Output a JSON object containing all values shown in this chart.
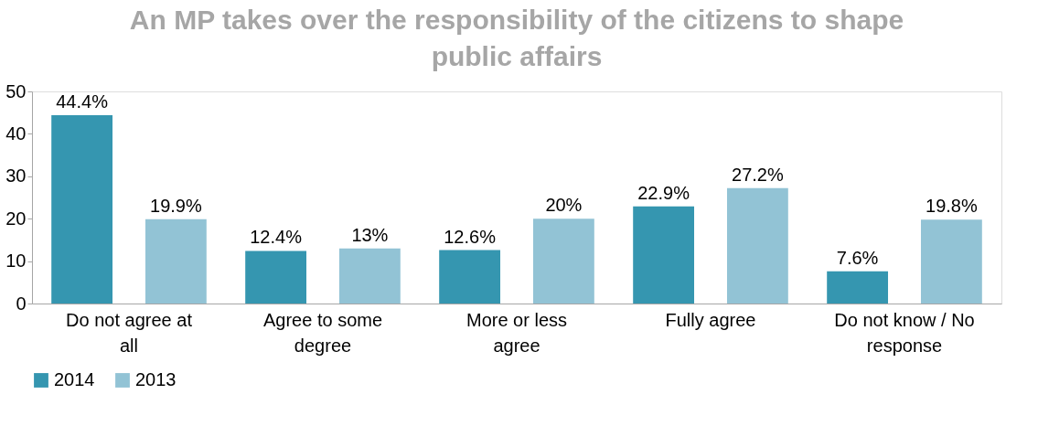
{
  "chart_data": {
    "type": "bar",
    "title": "An MP takes over the responsibility of the citizens  to shape public affairs",
    "categories": [
      "Do not agree at all",
      "Agree to some degree",
      "More or less agree",
      "Fully agree",
      "Do not know / No response"
    ],
    "series": [
      {
        "name": "2014",
        "color": "#3596b0",
        "values": [
          44.4,
          12.4,
          12.6,
          22.9,
          7.6
        ],
        "value_labels": [
          "44.4%",
          "12.4%",
          "12.6%",
          "22.9%",
          "7.6%"
        ]
      },
      {
        "name": "2013",
        "color": "#92c3d5",
        "values": [
          19.9,
          13,
          20,
          27.2,
          19.8
        ],
        "value_labels": [
          "19.9%",
          "13%",
          "20%",
          "27.2%",
          "19.8%"
        ]
      }
    ],
    "ylim": [
      0,
      50
    ],
    "yticks": [
      0,
      10,
      20,
      30,
      40,
      50
    ],
    "grid": false,
    "legend": "bottom"
  }
}
